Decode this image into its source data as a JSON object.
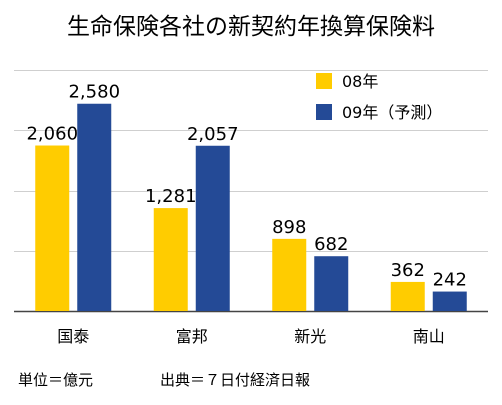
{
  "chart_data": {
    "type": "bar",
    "title": "生命保険各社の新契約年換算保険料",
    "categories": [
      "国泰",
      "富邦",
      "新光",
      "南山"
    ],
    "series": [
      {
        "name": "08年",
        "color": "#FFCC00",
        "values": [
          2060,
          1281,
          898,
          362
        ],
        "labels": [
          "2,060",
          "1,281",
          "898",
          "362"
        ]
      },
      {
        "name": "09年（予測）",
        "color": "#244A96",
        "values": [
          2580,
          2057,
          682,
          242
        ],
        "labels": [
          "2,580",
          "2,057",
          "682",
          "242"
        ]
      }
    ],
    "ylim": [
      0,
      3000
    ],
    "grid": true,
    "legend_position": "top-right"
  },
  "footer": {
    "unit": "単位＝億元",
    "source": "出典＝７日付経済日報"
  }
}
